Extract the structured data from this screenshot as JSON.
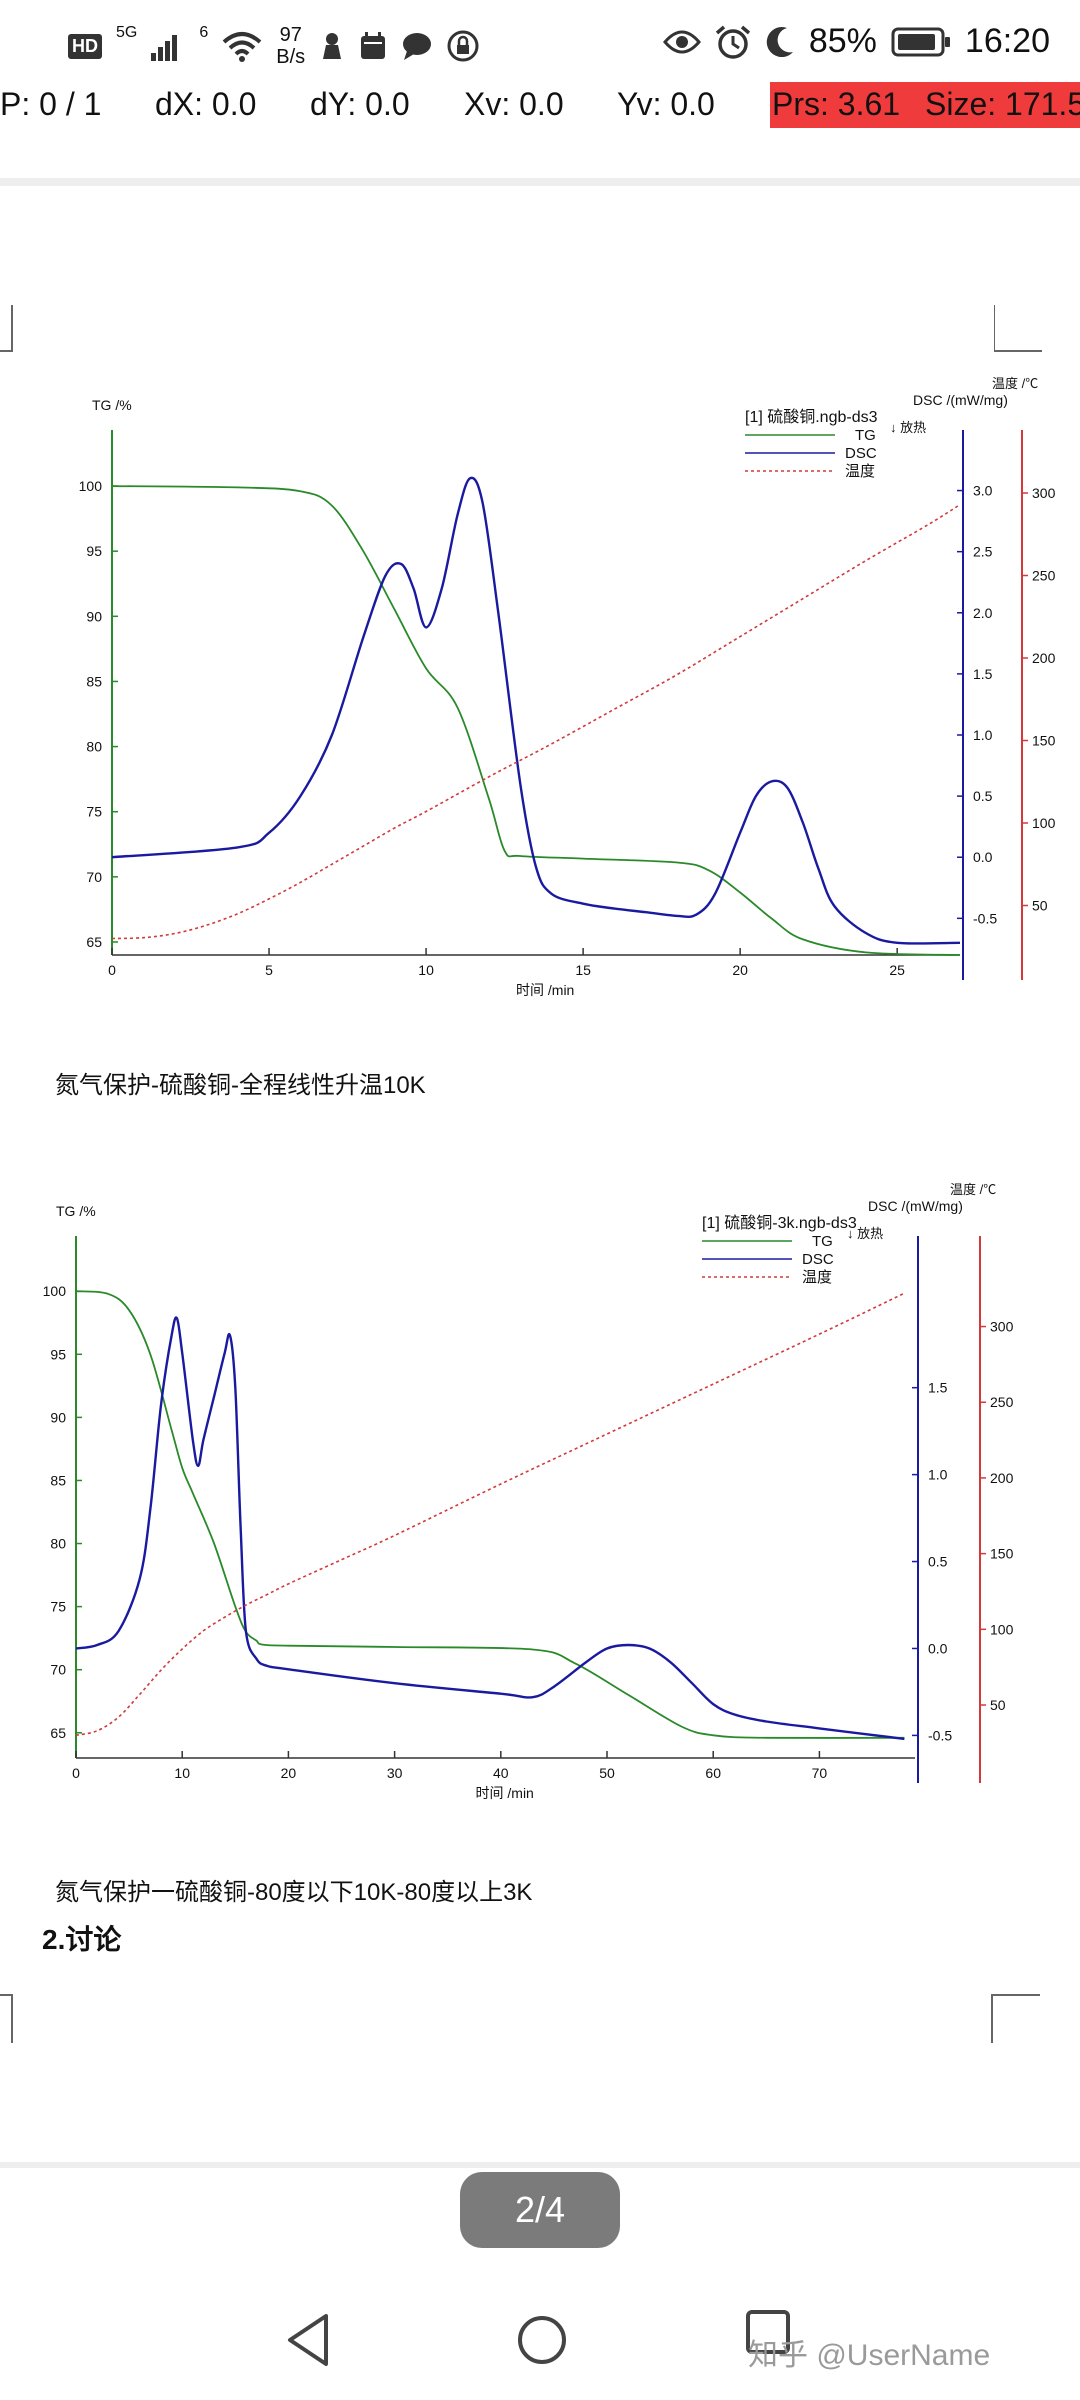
{
  "status_bar": {
    "network_badge": "HD",
    "network_type": "5G",
    "wifi_label": "6",
    "speed_value": "97",
    "speed_unit": "B/s",
    "battery": "85%",
    "time": "16:20",
    "icons": [
      "signal-icon",
      "wifi-icon",
      "notification-icon",
      "calendar-icon",
      "chat-icon",
      "lock-icon",
      "eye-icon",
      "alarm-icon",
      "moon-icon",
      "battery-icon"
    ]
  },
  "debug": {
    "p": "P: 0 / 1",
    "dx": "dX: 0.0",
    "dy": "dY: 0.0",
    "xv": "Xv: 0.0",
    "yv": "Yv: 0.0",
    "prs": "Prs: 3.61",
    "size": "Size: 171.5",
    "highlight_color": "#ef3b3b"
  },
  "chart_data": [
    {
      "type": "line",
      "title": "[1] 硫酸铜.ngb-ds3",
      "xlabel": "时间 /min",
      "y_left_label": "TG /%",
      "y_right1_label": "DSC /(mW/mg)",
      "y_right2_label": "温度 /℃",
      "exo_label": "↓ 放热",
      "xlim": [
        0,
        27
      ],
      "x_ticks": [
        "0",
        "5",
        "10",
        "15",
        "20",
        "25"
      ],
      "y_left_lim": [
        64,
        102
      ],
      "y_left_ticks": [
        "65",
        "70",
        "75",
        "80",
        "85",
        "90",
        "95",
        "100"
      ],
      "y_right1_lim": [
        -0.8,
        3.25
      ],
      "y_right1_ticks": [
        "-0.5",
        "0.0",
        "0.5",
        "1.0",
        "1.5",
        "2.0",
        "2.5",
        "3.0"
      ],
      "y_right2_lim": [
        20,
        320
      ],
      "y_right2_ticks": [
        "50",
        "100",
        "150",
        "200",
        "250",
        "300"
      ],
      "legend": [
        "TG",
        "DSC",
        "温度"
      ],
      "series": [
        {
          "name": "TG",
          "color": "#2a8a2a",
          "axis": "left",
          "x": [
            0,
            4,
            6,
            7,
            8,
            9,
            10,
            11,
            12,
            12.5,
            13,
            15,
            18,
            19,
            20,
            21,
            22,
            24,
            27
          ],
          "y": [
            100,
            99.9,
            99.6,
            98.5,
            95,
            90.5,
            86,
            83,
            76,
            72,
            71.6,
            71.4,
            71.1,
            70.5,
            68.8,
            66.8,
            65.2,
            64.2,
            64
          ]
        },
        {
          "name": "DSC",
          "color": "#1a1aa0",
          "axis": "right1",
          "x": [
            0,
            4,
            5,
            6,
            7,
            8,
            8.7,
            9.2,
            9.6,
            10,
            10.5,
            11,
            11.4,
            11.8,
            12.3,
            13,
            13.5,
            14,
            15,
            16,
            17,
            18,
            18.6,
            19.2,
            20,
            20.5,
            21,
            21.5,
            22,
            22.5,
            23,
            24,
            25,
            27
          ],
          "y": [
            0,
            0.08,
            0.2,
            0.5,
            1.0,
            1.8,
            2.3,
            2.4,
            2.2,
            1.88,
            2.2,
            2.8,
            3.1,
            2.9,
            2.0,
            0.6,
            -0.08,
            -0.3,
            -0.38,
            -0.42,
            -0.45,
            -0.48,
            -0.47,
            -0.3,
            0.2,
            0.5,
            0.62,
            0.57,
            0.28,
            -0.1,
            -0.4,
            -0.62,
            -0.7,
            -0.7
          ]
        },
        {
          "name": "温度",
          "color": "#d23a3a",
          "axis": "right2",
          "dashed": true,
          "x": [
            0,
            1,
            2,
            3,
            4,
            5,
            6,
            7,
            8,
            9,
            10,
            12,
            14,
            16,
            18,
            20,
            22,
            24,
            26,
            27
          ],
          "y": [
            30,
            30.5,
            33,
            38,
            45,
            54,
            64,
            75,
            86,
            97,
            107,
            128,
            148,
            169,
            190,
            213,
            236,
            259,
            281,
            293
          ]
        }
      ]
    },
    {
      "type": "line",
      "title": "[1] 硫酸铜-3k.ngb-ds3",
      "xlabel": "时间 /min",
      "y_left_label": "TG /%",
      "y_right1_label": "DSC /(mW/mg)",
      "y_right2_label": "温度 /℃",
      "exo_label": "↓ 放热",
      "xlim": [
        0,
        79
      ],
      "x_ticks": [
        "0",
        "10",
        "20",
        "30",
        "40",
        "50",
        "60",
        "70"
      ],
      "y_left_lim": [
        63,
        102
      ],
      "y_left_ticks": [
        "65",
        "70",
        "75",
        "80",
        "85",
        "90",
        "95",
        "100"
      ],
      "y_right1_lim": [
        -0.63,
        2.2
      ],
      "y_right1_ticks": [
        "-0.5",
        "0.0",
        "0.5",
        "1.0",
        "1.5"
      ],
      "y_right2_lim": [
        15,
        340
      ],
      "y_right2_ticks": [
        "50",
        "100",
        "150",
        "200",
        "250",
        "300"
      ],
      "legend": [
        "TG",
        "DSC",
        "温度"
      ],
      "series": [
        {
          "name": "TG",
          "color": "#2a8a2a",
          "axis": "left",
          "x": [
            0,
            3,
            5,
            7,
            9,
            10,
            11,
            13,
            15,
            16,
            17,
            17.5,
            20,
            30,
            43,
            47,
            52,
            57,
            60,
            65,
            78
          ],
          "y": [
            100,
            99.8,
            98.5,
            95,
            89,
            86,
            84,
            80,
            75,
            73,
            72.3,
            72,
            71.9,
            71.8,
            71.6,
            70.5,
            68,
            65.5,
            64.8,
            64.6,
            64.6
          ]
        },
        {
          "name": "DSC",
          "color": "#1a1aa0",
          "axis": "right1",
          "x": [
            0,
            2,
            4,
            6,
            7,
            8,
            9,
            9.5,
            10,
            11,
            11.5,
            12,
            13,
            14,
            14.5,
            15,
            15.5,
            16,
            17,
            18,
            20,
            30,
            40,
            43,
            45,
            48,
            50,
            52,
            54,
            56,
            58,
            60,
            62,
            65,
            70,
            78
          ],
          "y": [
            0,
            0.02,
            0.1,
            0.4,
            0.8,
            1.4,
            1.8,
            1.9,
            1.7,
            1.2,
            1.05,
            1.2,
            1.45,
            1.7,
            1.8,
            1.5,
            0.7,
            0.1,
            -0.06,
            -0.1,
            -0.12,
            -0.2,
            -0.26,
            -0.28,
            -0.22,
            -0.08,
            0,
            0.02,
            0,
            -0.08,
            -0.2,
            -0.32,
            -0.38,
            -0.42,
            -0.46,
            -0.52
          ]
        },
        {
          "name": "温度",
          "color": "#d23a3a",
          "axis": "right2",
          "dashed": true,
          "x": [
            0,
            2,
            4,
            6,
            8,
            10,
            12,
            14,
            16,
            18,
            20,
            25,
            30,
            40,
            50,
            60,
            70,
            78
          ],
          "y": [
            30,
            33,
            42,
            57,
            73,
            87,
            99,
            108,
            116,
            123,
            130,
            146,
            162,
            196,
            229,
            262,
            295,
            322
          ]
        }
      ]
    }
  ],
  "captions": {
    "chart1": "氮气保护-硫酸铜-全程线性升温10K",
    "chart2": "氮气保护一硫酸铜-80度以下10K-80度以上3K"
  },
  "section_title": "2.讨论",
  "pager": "2/4",
  "nav": {
    "back": "back-icon",
    "home": "home-icon",
    "recent": "recent-apps-icon"
  },
  "watermark": "知乎 @UserName"
}
